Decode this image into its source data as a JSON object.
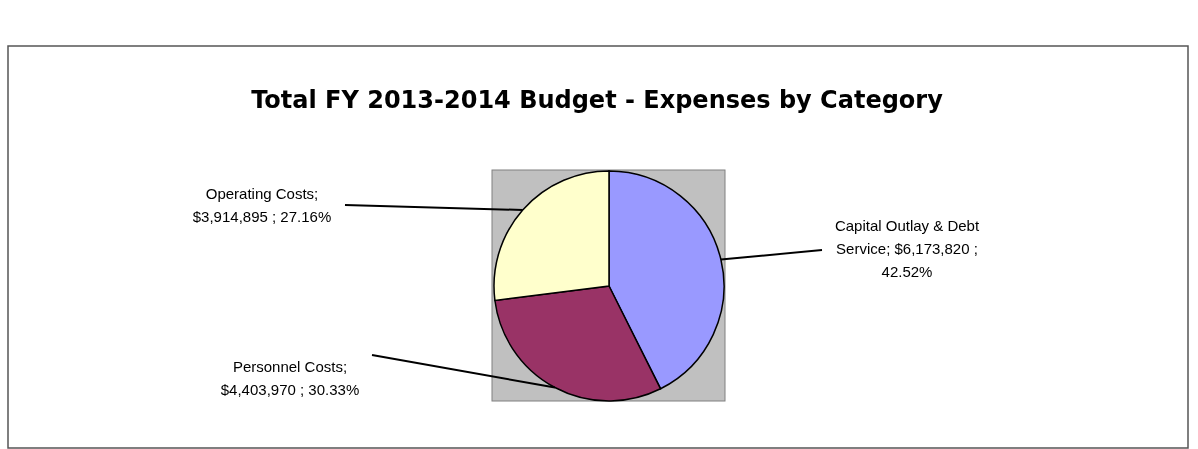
{
  "chart_data": {
    "type": "pie",
    "title": "Total FY 2013-2014 Budget - Expenses by Category",
    "categories": [
      "Capital Outlay & Debt Service",
      "Personnel Costs",
      "Operating Costs"
    ],
    "values": [
      6173820,
      4403970,
      3914895
    ],
    "colors": [
      "#9999ff",
      "#993366",
      "#ffffcc"
    ],
    "value_labels": [
      "; $6,173,820 ; 42.52%",
      "; $4,403,970 ; 30.33%",
      "; $3,914,895 ; 27.16%"
    ]
  }
}
